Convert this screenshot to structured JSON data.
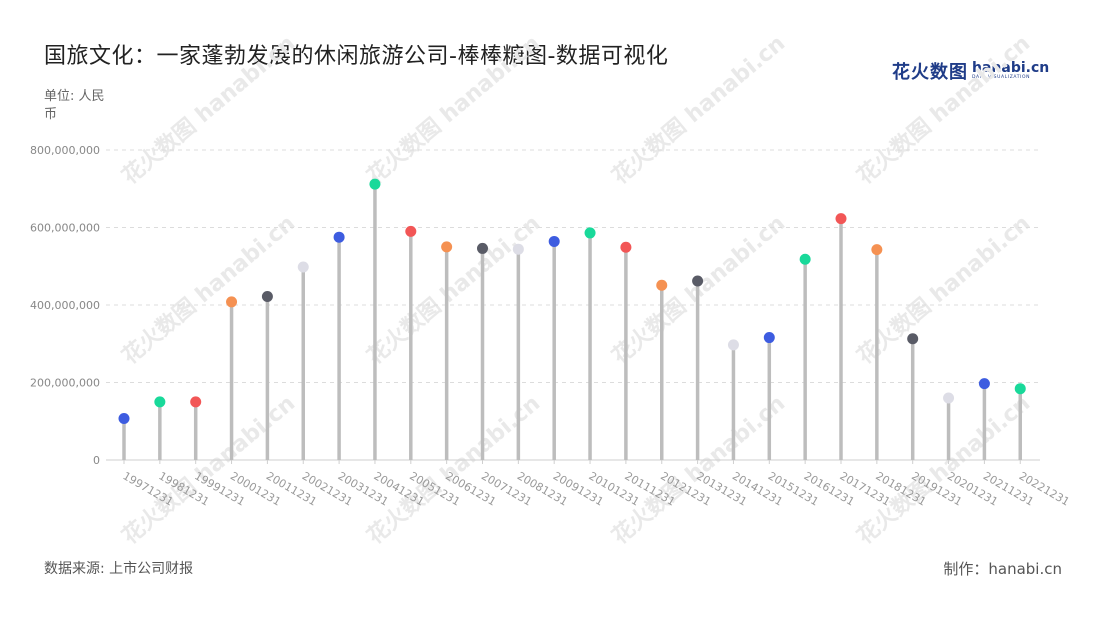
{
  "header": {
    "title": "国旅文化：一家蓬勃发展的休闲旅游公司-棒棒糖图-数据可视化",
    "logo_cn": "花火数图",
    "logo_en": "hanabi.cn",
    "logo_sub": "DATA VISUALIZATION"
  },
  "unit_label": "单位: 人民币",
  "footer": {
    "source": "数据来源: 上市公司财报",
    "maker": "制作：hanabi.cn"
  },
  "watermark_text": "花火数图 hanabi.cn",
  "chart_data": {
    "type": "lollipop",
    "title": "国旅文化：一家蓬勃发展的休闲旅游公司-棒棒糖图-数据可视化",
    "xlabel": "",
    "ylabel": "单位: 人民币",
    "ylim": [
      0,
      800000000
    ],
    "yticks": [
      0,
      200000000,
      400000000,
      600000000,
      800000000
    ],
    "ytick_labels": [
      "0",
      "200,000,000",
      "400,000,000",
      "600,000,000",
      "800,000,000"
    ],
    "grid": "horizontal dashed",
    "categories": [
      "19971231",
      "19981231",
      "19991231",
      "20001231",
      "20011231",
      "20021231",
      "20031231",
      "20041231",
      "20051231",
      "20061231",
      "20071231",
      "20081231",
      "20091231",
      "20101231",
      "20111231",
      "20121231",
      "20131231",
      "20141231",
      "20151231",
      "20161231",
      "20171231",
      "20181231",
      "20191231",
      "20201231",
      "20211231",
      "20221231"
    ],
    "values": [
      107000000,
      150000000,
      150000000,
      408000000,
      422000000,
      498000000,
      575000000,
      712000000,
      590000000,
      550000000,
      546000000,
      544000000,
      564000000,
      586000000,
      549000000,
      451000000,
      462000000,
      297000000,
      316000000,
      518000000,
      623000000,
      543000000,
      313000000,
      160000000,
      197000000,
      184000000
    ],
    "stick_color": "#bdbdbd",
    "dot_colors": [
      "#3d5ce0",
      "#19d99a",
      "#f25656",
      "#f59152",
      "#595b66",
      "#dddde6"
    ]
  }
}
